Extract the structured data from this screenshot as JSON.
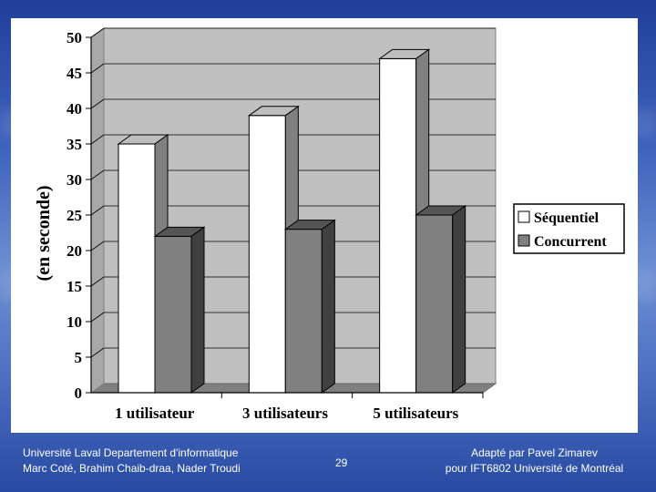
{
  "chart_data": {
    "type": "bar",
    "ylabel": "(en seconde)",
    "ylim": [
      0,
      50
    ],
    "yticks": [
      0,
      5,
      10,
      15,
      20,
      25,
      30,
      35,
      40,
      45,
      50
    ],
    "categories": [
      "1 utilisateur",
      "3 utilisateurs",
      "5 utilisateurs"
    ],
    "series": [
      {
        "name": "Séquentiel",
        "values": [
          35,
          39,
          47
        ],
        "color": "#ffffff"
      },
      {
        "name": "Concurrent",
        "values": [
          22,
          23,
          25
        ],
        "color": "#808080"
      }
    ],
    "legend": "right",
    "grid": true
  },
  "footer": {
    "left_line1": "Université Laval Departement d'informatique",
    "left_line2": "Marc Coté, Brahim Chaib-draa, Nader Troudi",
    "page_number": "29",
    "right_line1": "Adapté par Pavel Zimarev",
    "right_line2": "pour  IFT6802 Université de Montréal"
  }
}
